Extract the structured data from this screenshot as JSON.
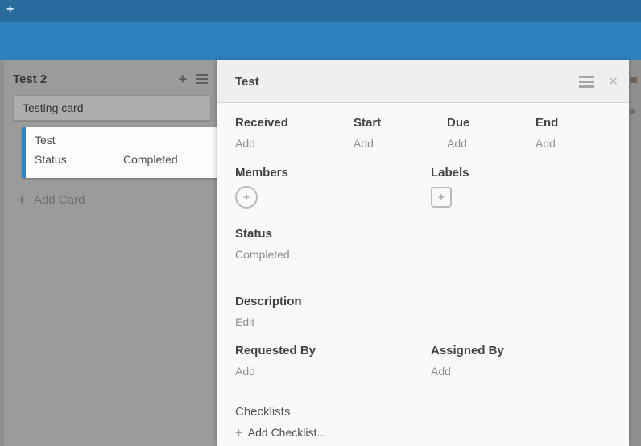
{
  "icons": {
    "plus": "+",
    "close": "✕"
  },
  "navbar": {
    "add_board_icon": "+"
  },
  "list": {
    "title": "Test 2",
    "composer_value": "Testing card",
    "card": {
      "title": "Test",
      "field_label": "Status",
      "field_value": "Completed"
    },
    "add_card_label": "Add Card"
  },
  "card_detail": {
    "title": "Test",
    "dates": [
      {
        "label": "Received",
        "action": "Add"
      },
      {
        "label": "Start",
        "action": "Add"
      },
      {
        "label": "Due",
        "action": "Add"
      },
      {
        "label": "End",
        "action": "Add"
      }
    ],
    "members_label": "Members",
    "labels_label": "Labels",
    "status_label": "Status",
    "status_value": "Completed",
    "description_label": "Description",
    "description_action": "Edit",
    "requested_by_label": "Requested By",
    "requested_by_action": "Add",
    "assigned_by_label": "Assigned By",
    "assigned_by_action": "Add",
    "checklists_label": "Checklists",
    "add_checklist_label": "Add Checklist..."
  },
  "colors": {
    "navbar": "#2b6c9e",
    "board_header": "#2e81bd",
    "board_bg": "#8f8f8f",
    "list_bg": "#9b9b9b",
    "card_accent": "#2e86c5",
    "panel_header_bg": "#efefef",
    "panel_bg": "#f9f9f9"
  }
}
